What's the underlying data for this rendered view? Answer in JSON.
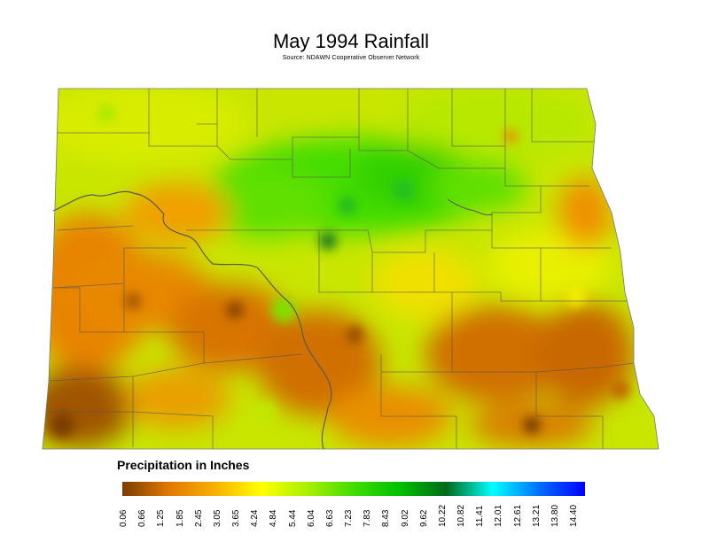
{
  "title": "May 1994 Rainfall",
  "subtitle": "Source: NDAWN Cooperative Observer Network",
  "legend": {
    "title": "Precipitation in Inches",
    "ticks": [
      "0.06",
      "0.66",
      "1.25",
      "1.85",
      "2.45",
      "3.05",
      "3.65",
      "4.24",
      "4.84",
      "5.44",
      "6.04",
      "6.63",
      "7.23",
      "7.83",
      "8.43",
      "9.02",
      "9.62",
      "10.22",
      "10.82",
      "11.41",
      "12.01",
      "12.61",
      "13.21",
      "13.80",
      "14.40"
    ],
    "colors": [
      "#7a3d00",
      "#e07800",
      "#f8b000",
      "#ffff00",
      "#a8f000",
      "#40dd00",
      "#00c000",
      "#006a1a",
      "#00ffff",
      "#0070ff",
      "#0000ff"
    ]
  }
}
